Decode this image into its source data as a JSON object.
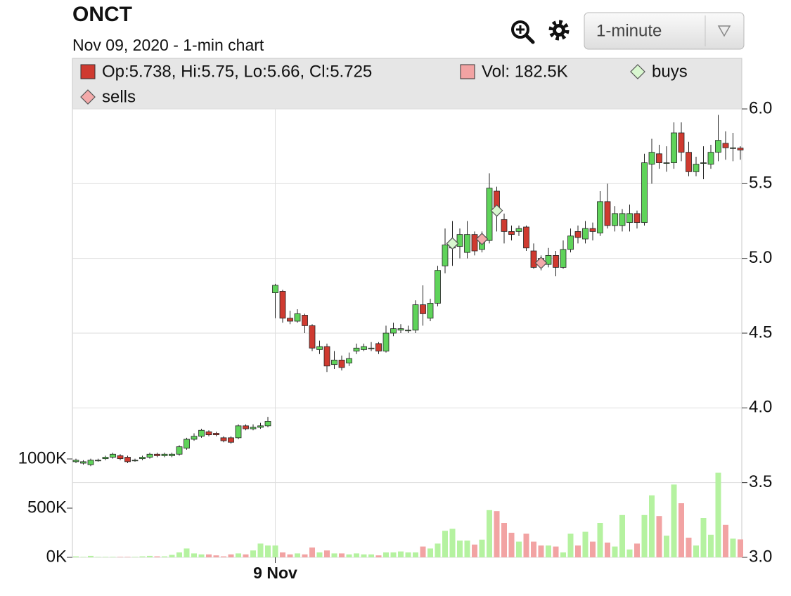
{
  "chart_data": {
    "type": "candlestick",
    "title": "ONCT",
    "subtitle": "Nov 09, 2020 - 1-min chart",
    "interval_menu": "1-minute",
    "categories": [
      null,
      null,
      null,
      null,
      null,
      null,
      null,
      null,
      null,
      null,
      null,
      null,
      null,
      null,
      null,
      null,
      null,
      null,
      null,
      null,
      null,
      null,
      null,
      null,
      null,
      null,
      null,
      "9 Nov",
      null,
      null,
      null,
      null,
      null,
      null,
      null,
      null,
      null,
      null,
      null,
      null,
      null,
      null,
      null,
      null,
      null,
      null,
      null,
      null,
      null,
      null,
      null,
      null,
      null,
      null,
      null,
      null,
      null,
      null,
      null,
      null,
      null,
      null,
      null,
      null,
      null,
      null,
      null,
      null,
      null,
      null,
      null,
      null,
      null,
      null,
      null,
      null,
      null,
      null,
      null,
      null,
      null,
      null,
      null,
      null,
      null,
      null,
      null,
      null,
      null,
      null,
      null
    ],
    "open": [
      3.64,
      3.63,
      3.62,
      3.65,
      3.66,
      3.67,
      3.68,
      3.67,
      3.65,
      3.66,
      3.67,
      3.69,
      3.68,
      3.68,
      3.69,
      3.73,
      3.79,
      3.81,
      3.84,
      3.83,
      3.8,
      3.8,
      3.8,
      3.88,
      3.86,
      3.87,
      3.88,
      4.77,
      4.78,
      4.6,
      4.58,
      4.62,
      4.55,
      4.39,
      4.41,
      4.29,
      4.32,
      4.3,
      4.38,
      4.39,
      4.4,
      4.43,
      4.38,
      4.5,
      4.52,
      4.52,
      4.52,
      4.69,
      4.6,
      4.7,
      4.95,
      5.07,
      5.08,
      5.04,
      5.16,
      5.06,
      5.12,
      5.45,
      5.26,
      5.18,
      5.18,
      5.21,
      5.05,
      5.0,
      4.96,
      5.02,
      4.94,
      5.06,
      5.18,
      5.13,
      5.2,
      5.17,
      5.38,
      5.22,
      5.22,
      5.24,
      5.3,
      5.24,
      5.63,
      5.7,
      5.64,
      5.64,
      5.84,
      5.71,
      5.58,
      5.64,
      5.63,
      5.71,
      5.77,
      5.74,
      5.738
    ],
    "high": [
      3.66,
      3.65,
      3.66,
      3.66,
      3.68,
      3.7,
      3.69,
      3.68,
      3.66,
      3.68,
      3.7,
      3.7,
      3.7,
      3.7,
      3.75,
      3.8,
      3.83,
      3.86,
      3.85,
      3.84,
      3.81,
      3.81,
      3.89,
      3.89,
      3.89,
      3.9,
      3.94,
      4.83,
      4.79,
      4.65,
      4.66,
      4.63,
      4.56,
      4.45,
      4.43,
      4.38,
      4.35,
      4.37,
      4.43,
      4.43,
      4.44,
      4.44,
      4.55,
      4.57,
      4.56,
      4.55,
      4.72,
      4.82,
      4.73,
      4.95,
      5.2,
      5.25,
      5.2,
      5.25,
      5.18,
      5.18,
      5.57,
      5.48,
      5.3,
      5.22,
      5.22,
      5.22,
      5.1,
      5.02,
      5.07,
      5.05,
      5.12,
      5.2,
      5.22,
      5.25,
      5.24,
      5.45,
      5.5,
      5.35,
      5.33,
      5.36,
      5.32,
      5.7,
      5.8,
      5.76,
      5.75,
      5.91,
      5.91,
      5.78,
      5.68,
      5.75,
      5.76,
      5.96,
      5.85,
      5.84,
      5.75
    ],
    "low": [
      3.63,
      3.62,
      3.61,
      3.64,
      3.65,
      3.66,
      3.65,
      3.63,
      3.64,
      3.65,
      3.66,
      3.67,
      3.67,
      3.67,
      3.68,
      3.72,
      3.78,
      3.8,
      3.81,
      3.81,
      3.77,
      3.76,
      3.79,
      3.85,
      3.85,
      3.86,
      3.87,
      4.6,
      4.57,
      4.56,
      4.57,
      4.5,
      4.38,
      4.36,
      4.24,
      4.26,
      4.25,
      4.28,
      4.36,
      4.38,
      4.38,
      4.36,
      4.37,
      4.48,
      4.5,
      4.5,
      4.5,
      4.55,
      4.58,
      4.68,
      4.9,
      4.95,
      5.0,
      5.0,
      5.02,
      5.04,
      5.1,
      5.18,
      5.1,
      5.12,
      5.15,
      5.05,
      4.93,
      4.92,
      4.94,
      4.88,
      4.93,
      5.04,
      5.1,
      5.1,
      5.12,
      5.15,
      5.2,
      5.18,
      5.18,
      5.18,
      5.2,
      5.22,
      5.5,
      5.6,
      5.58,
      5.6,
      5.65,
      5.55,
      5.55,
      5.53,
      5.6,
      5.65,
      5.66,
      5.65,
      5.66
    ],
    "close": [
      3.65,
      3.64,
      3.65,
      3.65,
      3.67,
      3.69,
      3.66,
      3.64,
      3.65,
      3.67,
      3.69,
      3.68,
      3.69,
      3.69,
      3.74,
      3.79,
      3.81,
      3.85,
      3.82,
      3.82,
      3.78,
      3.77,
      3.88,
      3.86,
      3.87,
      3.88,
      3.91,
      4.82,
      4.6,
      4.58,
      4.63,
      4.55,
      4.4,
      4.41,
      4.28,
      4.32,
      4.27,
      4.33,
      4.4,
      4.41,
      4.4,
      4.38,
      4.5,
      4.53,
      4.53,
      4.52,
      4.69,
      4.63,
      4.7,
      4.92,
      5.09,
      5.11,
      5.16,
      5.16,
      5.05,
      5.12,
      5.47,
      5.3,
      5.18,
      5.16,
      5.2,
      5.07,
      4.94,
      4.97,
      5.02,
      4.94,
      5.06,
      5.15,
      5.14,
      5.2,
      5.18,
      5.38,
      5.22,
      5.3,
      5.3,
      5.3,
      5.24,
      5.64,
      5.71,
      5.64,
      5.64,
      5.84,
      5.71,
      5.58,
      5.63,
      5.64,
      5.71,
      5.79,
      5.74,
      5.74,
      5.725
    ],
    "volume": [
      10,
      5,
      15,
      5,
      5,
      5,
      5,
      5,
      5,
      10,
      15,
      10,
      10,
      25,
      50,
      90,
      40,
      30,
      30,
      20,
      10,
      30,
      40,
      30,
      70,
      140,
      120,
      120,
      50,
      30,
      40,
      30,
      100,
      50,
      70,
      40,
      40,
      30,
      40,
      30,
      30,
      20,
      50,
      50,
      60,
      50,
      50,
      110,
      90,
      140,
      270,
      290,
      170,
      170,
      130,
      180,
      480,
      470,
      350,
      250,
      160,
      240,
      160,
      120,
      120,
      110,
      50,
      240,
      120,
      260,
      160,
      350,
      150,
      110,
      430,
      80,
      140,
      430,
      630,
      420,
      220,
      740,
      550,
      200,
      120,
      400,
      230,
      860,
      330,
      190,
      182.5
    ],
    "colors": {
      "up": "#5fd35a",
      "down": "#cf3a30"
    },
    "volume_colors": {
      "up": "#b5f2a0",
      "down": "#f2a3a3"
    },
    "ylim": [
      3,
      6
    ],
    "yticks": [
      {
        "value": 3,
        "label": "3.0"
      },
      3.5,
      {
        "value": 4,
        "label": "4.0"
      },
      4.5,
      {
        "value": 5,
        "label": "5.0"
      },
      5.5,
      {
        "value": 6,
        "label": "6.0"
      }
    ],
    "volume_ylim": [
      0,
      4557
    ],
    "volume_yticks": [
      {
        "value": 0,
        "label": "0K"
      },
      {
        "value": 500,
        "label": "500K"
      },
      {
        "value": 1000,
        "label": "1000K"
      }
    ],
    "grid": true,
    "legend": [
      {
        "label": "Op:5.738, Hi:5.75, Lo:5.66, Cl:5.725",
        "color": "#cf3a30"
      },
      {
        "label": "Vol: 182.5K",
        "color": "#f2a3a3"
      }
    ],
    "series": [
      {
        "name": "buys",
        "color": "#d9f7d0",
        "values": [
          null,
          null,
          null,
          null,
          null,
          null,
          null,
          null,
          null,
          null,
          null,
          null,
          null,
          null,
          null,
          null,
          null,
          null,
          null,
          null,
          null,
          null,
          null,
          null,
          null,
          null,
          null,
          null,
          null,
          null,
          null,
          null,
          null,
          null,
          null,
          null,
          null,
          null,
          null,
          null,
          null,
          null,
          null,
          null,
          null,
          null,
          null,
          null,
          null,
          null,
          null,
          5.1,
          null,
          null,
          null,
          null,
          null,
          5.32,
          null,
          null,
          null,
          null,
          null,
          null,
          null,
          null,
          null,
          null,
          null,
          null,
          null,
          null,
          null,
          null,
          null,
          null,
          null,
          null,
          null,
          null,
          null,
          null,
          null,
          null,
          null,
          null,
          null,
          null,
          null,
          null,
          null
        ]
      },
      {
        "name": "sells",
        "color": "#f3aaaa",
        "values": [
          null,
          null,
          null,
          null,
          null,
          null,
          null,
          null,
          null,
          null,
          null,
          null,
          null,
          null,
          null,
          null,
          null,
          null,
          null,
          null,
          null,
          null,
          null,
          null,
          null,
          null,
          null,
          null,
          null,
          null,
          null,
          null,
          null,
          null,
          null,
          null,
          null,
          null,
          null,
          null,
          null,
          null,
          null,
          null,
          null,
          null,
          null,
          null,
          null,
          null,
          null,
          null,
          null,
          null,
          null,
          5.13,
          null,
          null,
          null,
          null,
          null,
          null,
          null,
          4.97,
          null,
          null,
          null,
          null,
          null,
          null,
          null,
          null,
          null,
          null,
          null,
          null,
          null,
          null,
          null,
          null,
          null,
          null,
          null,
          null,
          null,
          null,
          null,
          null,
          null,
          null,
          null
        ]
      }
    ]
  }
}
